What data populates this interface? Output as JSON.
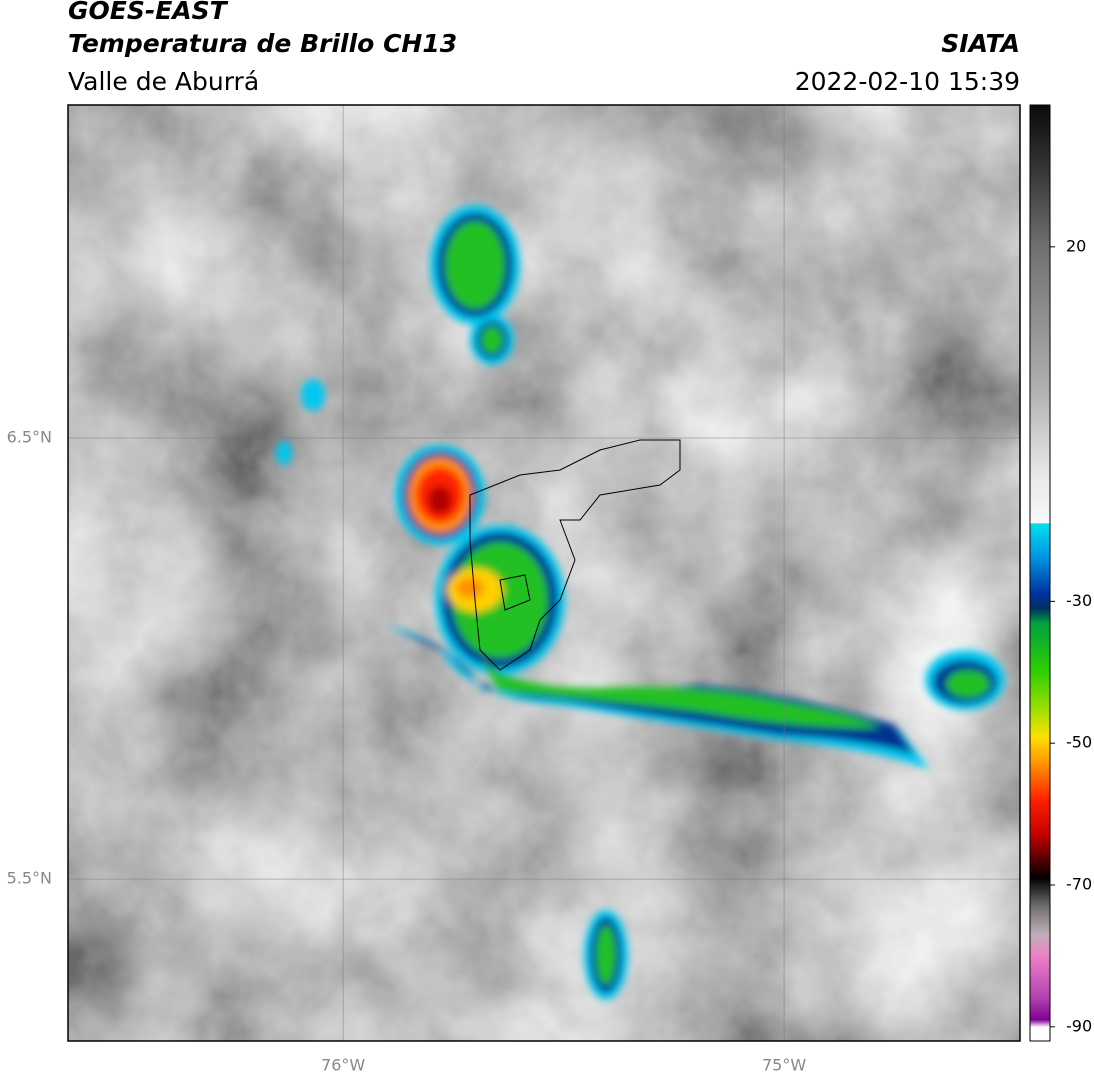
{
  "header": {
    "title": "GOES-EAST",
    "subtitle": "Temperatura de Brillo CH13",
    "region": "Valle de Aburrá",
    "source": "SIATA",
    "datetime": "2022-02-10 15:39"
  },
  "map": {
    "lonlim": [
      -76.624,
      -74.465
    ],
    "latlim": [
      5.133,
      7.255
    ],
    "lonticks": [
      {
        "value": -76,
        "label": "76°W"
      },
      {
        "value": -75,
        "label": "75°W"
      }
    ],
    "latticks": [
      {
        "value": 6.5,
        "label": "6.5°N"
      },
      {
        "value": 5.5,
        "label": "5.5°N"
      }
    ],
    "grid": true
  },
  "colorbar": {
    "lim": [
      -92,
      40
    ],
    "ticks": [
      20,
      -30,
      -50,
      -70,
      -90
    ],
    "colormap": [
      {
        "value": 40,
        "color": "#0a0a0a"
      },
      {
        "value": 30,
        "color": "#3a3a3a"
      },
      {
        "value": 20,
        "color": "#707070"
      },
      {
        "value": 0,
        "color": "#b0b0b0"
      },
      {
        "value": -12,
        "color": "#e8e8e8"
      },
      {
        "value": -19,
        "color": "#f8f8f8"
      },
      {
        "value": -19,
        "color": "#00e0f0"
      },
      {
        "value": -24,
        "color": "#0090e0"
      },
      {
        "value": -29,
        "color": "#0030a0"
      },
      {
        "value": -31,
        "color": "#003060"
      },
      {
        "value": -33,
        "color": "#00a040"
      },
      {
        "value": -40,
        "color": "#30d000"
      },
      {
        "value": -46,
        "color": "#b0e000"
      },
      {
        "value": -49,
        "color": "#ffe000"
      },
      {
        "value": -53,
        "color": "#ff9000"
      },
      {
        "value": -58,
        "color": "#ff2000"
      },
      {
        "value": -63,
        "color": "#c00000"
      },
      {
        "value": -67,
        "color": "#400000"
      },
      {
        "value": -69,
        "color": "#000000"
      },
      {
        "value": -73,
        "color": "#707070"
      },
      {
        "value": -77,
        "color": "#c0b0b8"
      },
      {
        "value": -80,
        "color": "#f080c8"
      },
      {
        "value": -86,
        "color": "#b040b0"
      },
      {
        "value": -89,
        "color": "#800090"
      },
      {
        "value": -90,
        "color": "#ffffff"
      },
      {
        "value": -92,
        "color": "#ffffff"
      }
    ]
  }
}
